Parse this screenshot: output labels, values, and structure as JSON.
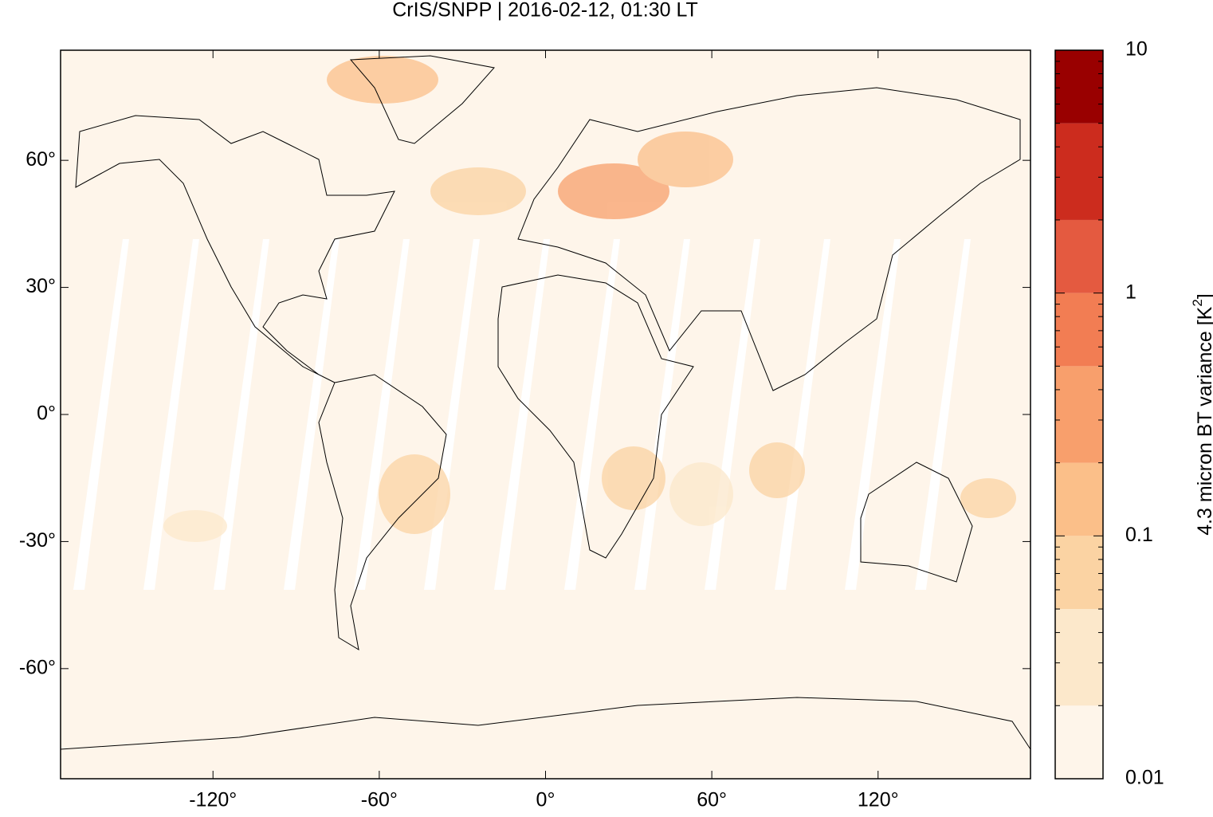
{
  "chart_data": {
    "type": "map",
    "title": "CrIS/SNPP | 2016-02-12, 01:30 LT",
    "xlim": [
      -175,
      175
    ],
    "ylim": [
      -86,
      86
    ],
    "xticks": [
      {
        "value": -120,
        "label": "-120°"
      },
      {
        "value": -60,
        "label": "-60°"
      },
      {
        "value": 0,
        "label": "0°"
      },
      {
        "value": 60,
        "label": "60°"
      },
      {
        "value": 120,
        "label": "120°"
      }
    ],
    "yticks": [
      {
        "value": -60,
        "label": "-60°"
      },
      {
        "value": -30,
        "label": "-30°"
      },
      {
        "value": 0,
        "label": "0°"
      },
      {
        "value": 30,
        "label": "30°"
      },
      {
        "value": 60,
        "label": "60°"
      }
    ],
    "colorbar": {
      "label": "4.3 micron BT variance [K",
      "label_sup": "2",
      "label_end": "]",
      "scale": "log",
      "levels": [
        0.01,
        0.02,
        0.05,
        0.1,
        0.2,
        0.5,
        1,
        2,
        5,
        10
      ],
      "colors": [
        "#fef5ea",
        "#fce8cb",
        "#fbd3a3",
        "#fbbf89",
        "#f89f6c",
        "#f27d53",
        "#e45a40",
        "#cc2c1e",
        "#990000"
      ],
      "ticks": [
        0.01,
        0.1,
        1,
        10
      ]
    }
  }
}
